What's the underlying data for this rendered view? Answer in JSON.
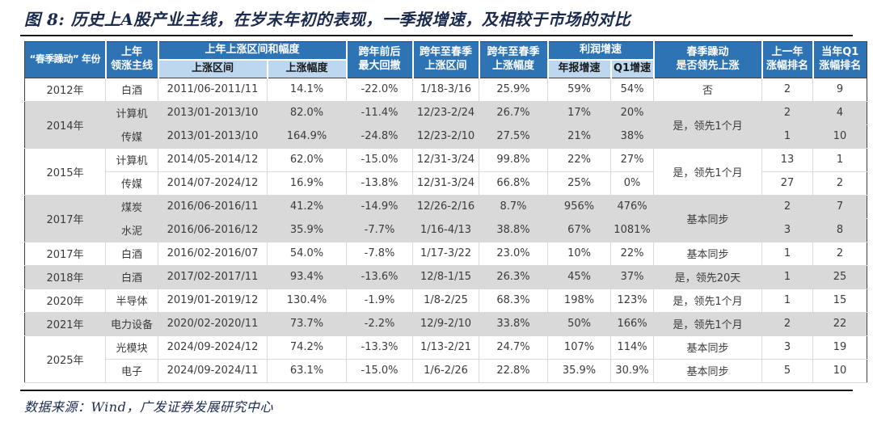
{
  "title": "图 8:  历史上A股产业主线，在岁末年初的表现，一季报增速，及相较于市场的对比",
  "footer": "数据来源：Wind，广发证券发展研究中心",
  "colors": {
    "header_blue": "#2E74B5",
    "subheader_blue": "#BDD7EE",
    "row_gray": "#D9D9D9",
    "title_navy": "#1B2B4E"
  },
  "table": {
    "header": {
      "year": "“春季躁动” 年份",
      "prev_main_line1": "上年",
      "prev_main_line2": "领涨主线",
      "prev_group": "上年上涨区间和幅度",
      "rise_range": "上涨区间",
      "rise_pct": "上涨幅度",
      "drawdown_line1": "跨年前后",
      "drawdown_line2": "最大回撤",
      "spring_range_line1": "跨年至春季",
      "spring_range_line2": "上涨区间",
      "spring_pct_line1": "跨年至春季",
      "spring_pct_line2": "上涨幅度",
      "profit_group": "利润增速",
      "annual_growth": "年报增速",
      "q1_growth": "Q1增速",
      "lead_line1": "春季躁动",
      "lead_line2": "是否领先上涨",
      "prev_rank_line1": "上一年",
      "prev_rank_line2": "涨幅排名",
      "q1_rank_line1": "当年Q1",
      "q1_rank_line2": "涨幅排名"
    },
    "rows": [
      {
        "year": "2012年",
        "year_span": 1,
        "main_line": "白酒",
        "rise_range": "2011/06-2011/11",
        "rise_pct": "14.1%",
        "max_drawdown": "-22.0%",
        "spring_range": "1/18-3/16",
        "spring_pct": "25.9%",
        "annual_growth": "59%",
        "q1_growth": "54%",
        "lead": "否",
        "lead_span": 1,
        "prev_year_rank": "2",
        "q1_rank": "9",
        "shade": "white"
      },
      {
        "year": "2014年",
        "year_span": 2,
        "main_line": "计算机",
        "rise_range": "2013/01-2013/10",
        "rise_pct": "82.0%",
        "max_drawdown": "-11.4%",
        "spring_range": "12/23-2/24",
        "spring_pct": "26.7%",
        "annual_growth": "17%",
        "q1_growth": "20%",
        "lead": "是，领先1个月",
        "lead_span": 2,
        "prev_year_rank": "2",
        "q1_rank": "4",
        "shade": "gray"
      },
      {
        "main_line": "传媒",
        "rise_range": "2013/01-2013/10",
        "rise_pct": "164.9%",
        "max_drawdown": "-24.8%",
        "spring_range": "12/23-2/10",
        "spring_pct": "27.5%",
        "annual_growth": "21%",
        "q1_growth": "38%",
        "prev_year_rank": "1",
        "q1_rank": "10",
        "shade": "gray"
      },
      {
        "year": "2015年",
        "year_span": 2,
        "main_line": "计算机",
        "rise_range": "2014/05-2014/12",
        "rise_pct": "62.0%",
        "max_drawdown": "-15.0%",
        "spring_range": "12/31-3/24",
        "spring_pct": "99.8%",
        "annual_growth": "22%",
        "q1_growth": "27%",
        "lead": "是，领先1个月",
        "lead_span": 2,
        "prev_year_rank": "13",
        "q1_rank": "1",
        "shade": "white"
      },
      {
        "main_line": "传媒",
        "rise_range": "2014/07-2024/12",
        "rise_pct": "16.9%",
        "max_drawdown": "-13.8%",
        "spring_range": "12/31-3/24",
        "spring_pct": "66.8%",
        "annual_growth": "25%",
        "q1_growth": "0%",
        "prev_year_rank": "27",
        "q1_rank": "2",
        "shade": "white"
      },
      {
        "year": "2017年",
        "year_span": 2,
        "main_line": "煤炭",
        "rise_range": "2016/06-2016/11",
        "rise_pct": "41.2%",
        "max_drawdown": "-14.9%",
        "spring_range": "12/26-2/16",
        "spring_pct": "8.7%",
        "annual_growth": "956%",
        "q1_growth": "476%",
        "lead": "基本同步",
        "lead_span": 2,
        "prev_year_rank": "2",
        "q1_rank": "7",
        "shade": "gray"
      },
      {
        "main_line": "水泥",
        "rise_range": "2016/06-2016/12",
        "rise_pct": "35.9%",
        "max_drawdown": "-7.7%",
        "spring_range": "1/16-4/13",
        "spring_pct": "38.8%",
        "annual_growth": "67%",
        "q1_growth": "1081%",
        "prev_year_rank": "3",
        "q1_rank": "8",
        "shade": "gray"
      },
      {
        "year": "2017年",
        "year_span": 1,
        "main_line": "白酒",
        "rise_range": "2016/02-2016/07",
        "rise_pct": "54.0%",
        "max_drawdown": "-7.8%",
        "spring_range": "1/17-3/22",
        "spring_pct": "23.0%",
        "annual_growth": "10%",
        "q1_growth": "22%",
        "lead": "基本同步",
        "lead_span": 1,
        "prev_year_rank": "1",
        "q1_rank": "2",
        "shade": "white"
      },
      {
        "year": "2018年",
        "year_span": 1,
        "main_line": "白酒",
        "rise_range": "2017/02-2017/11",
        "rise_pct": "93.4%",
        "max_drawdown": "-13.6%",
        "spring_range": "12/8-1/15",
        "spring_pct": "26.3%",
        "annual_growth": "45%",
        "q1_growth": "37%",
        "lead": "是，领先20天",
        "lead_span": 1,
        "prev_year_rank": "1",
        "q1_rank": "25",
        "shade": "gray"
      },
      {
        "year": "2020年",
        "year_span": 1,
        "main_line": "半导体",
        "rise_range": "2019/01-2019/12",
        "rise_pct": "130.4%",
        "max_drawdown": "-1.9%",
        "spring_range": "1/8-2/25",
        "spring_pct": "68.3%",
        "annual_growth": "198%",
        "q1_growth": "123%",
        "lead": "是，领先1个月",
        "lead_span": 1,
        "prev_year_rank": "1",
        "q1_rank": "15",
        "shade": "white"
      },
      {
        "year": "2021年",
        "year_span": 1,
        "main_line": "电力设备",
        "rise_range": "2020/02-2020/11",
        "rise_pct": "73.7%",
        "max_drawdown": "-2.2%",
        "spring_range": "12/9-2/10",
        "spring_pct": "33.8%",
        "annual_growth": "50%",
        "q1_growth": "166%",
        "lead": "是，领先1个月",
        "lead_span": 1,
        "prev_year_rank": "2",
        "q1_rank": "22",
        "shade": "gray"
      },
      {
        "year": "2025年",
        "year_span": 2,
        "main_line": "光模块",
        "rise_range": "2024/09-2024/12",
        "rise_pct": "74.2%",
        "max_drawdown": "-13.3%",
        "spring_range": "1/13-2/21",
        "spring_pct": "24.7%",
        "annual_growth": "107%",
        "q1_growth": "114%",
        "lead": "基本同步",
        "lead_span": 1,
        "prev_year_rank": "3",
        "q1_rank": "19",
        "shade": "white"
      },
      {
        "main_line": "电子",
        "rise_range": "2024/09-2024/11",
        "rise_pct": "63.1%",
        "max_drawdown": "-15.0%",
        "spring_range": "1/6-2/26",
        "spring_pct": "22.8%",
        "annual_growth": "35.9%",
        "q1_growth": "30.9%",
        "lead": "基本同步",
        "lead_span": 1,
        "prev_year_rank": "5",
        "q1_rank": "10",
        "shade": "white"
      }
    ]
  }
}
